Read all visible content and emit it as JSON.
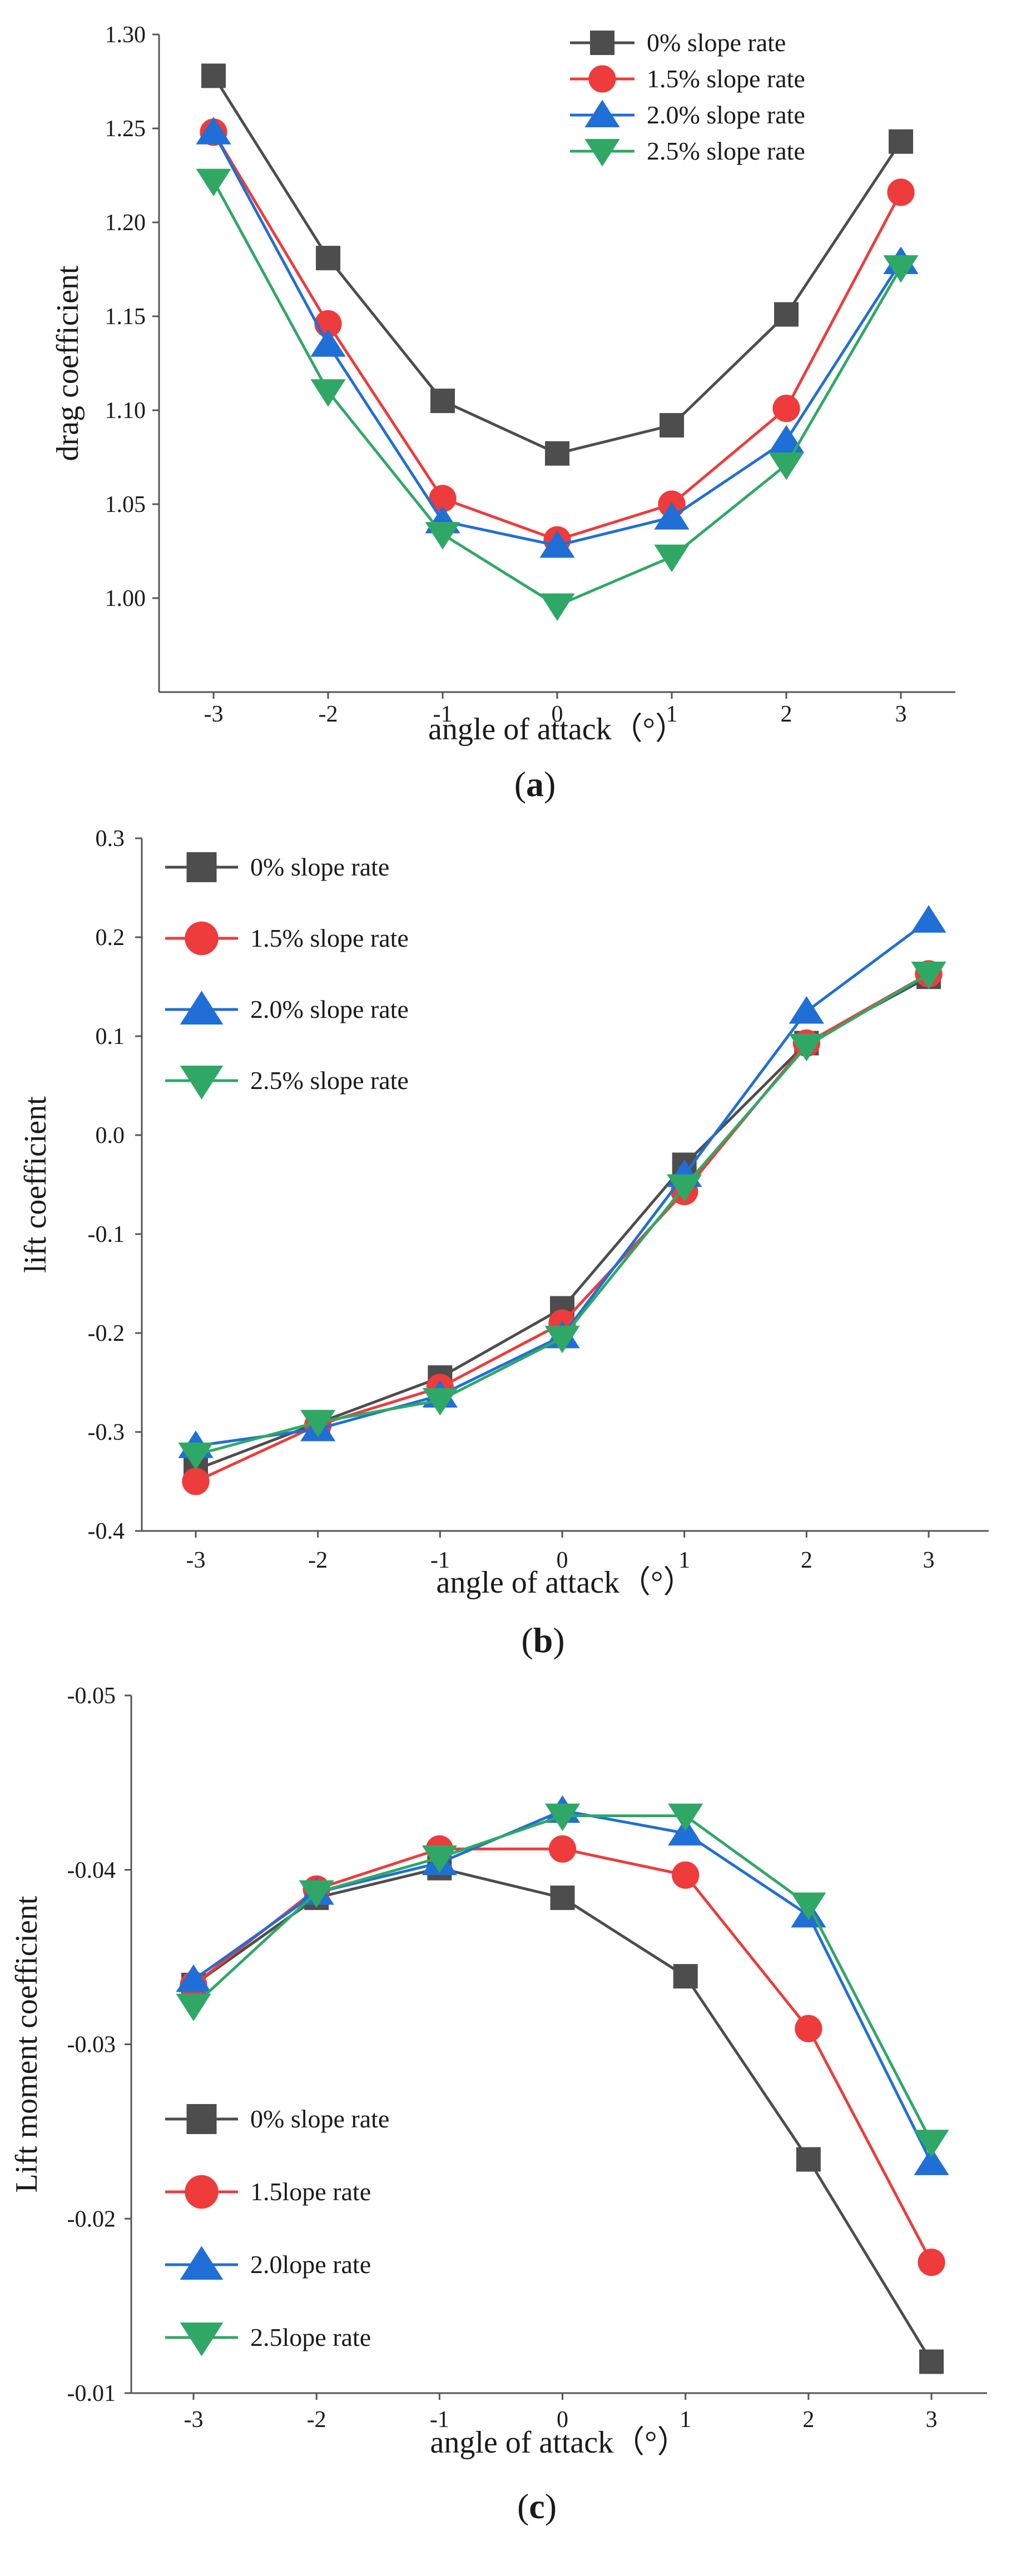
{
  "chart_data": [
    {
      "type": "line",
      "panel_label": "a",
      "xlabel": "angle of attack（°）",
      "ylabel": "drag coefficient",
      "x": [
        -3,
        -2,
        -1,
        0,
        1,
        2,
        3
      ],
      "x_tick_labels": [
        "-3",
        "-2",
        "-1",
        "0",
        "1",
        "2",
        "3"
      ],
      "ylim": [
        0.95,
        1.3
      ],
      "y_ticks": [
        1.0,
        1.05,
        1.1,
        1.15,
        1.2,
        1.25,
        1.3
      ],
      "y_tick_labels": [
        "1.00",
        "1.05",
        "1.10",
        "1.15",
        "1.20",
        "1.25",
        "1.30"
      ],
      "legend_position": "top-center",
      "series": [
        {
          "name": "0% slope rate",
          "marker": "square",
          "color": "#4d4d4d",
          "values": [
            1.278,
            1.181,
            1.105,
            1.077,
            1.092,
            1.151,
            1.243
          ]
        },
        {
          "name": "1.5% slope rate",
          "marker": "circle",
          "color": "#ee3b3b",
          "values": [
            1.248,
            1.146,
            1.053,
            1.031,
            1.05,
            1.101,
            1.216
          ]
        },
        {
          "name": "2.0% slope rate",
          "marker": "triangle-up",
          "color": "#1f6fd6",
          "values": [
            1.248,
            1.135,
            1.041,
            1.028,
            1.043,
            1.084,
            1.179
          ]
        },
        {
          "name": "2.5% slope rate",
          "marker": "triangle-down",
          "color": "#2fa866",
          "values": [
            1.222,
            1.11,
            1.034,
            0.996,
            1.022,
            1.071,
            1.176
          ]
        }
      ]
    },
    {
      "type": "line",
      "panel_label": "b",
      "xlabel": "angle of attack（°）",
      "ylabel": "lift coefficient",
      "x": [
        -3,
        -2,
        -1,
        0,
        1,
        2,
        3
      ],
      "x_tick_labels": [
        "-3",
        "-2",
        "-1",
        "0",
        "1",
        "2",
        "3"
      ],
      "ylim": [
        -0.4,
        0.3
      ],
      "y_ticks": [
        -0.4,
        -0.3,
        -0.2,
        -0.1,
        0.0,
        0.1,
        0.2,
        0.3
      ],
      "y_tick_labels": [
        "-0.4",
        "-0.3",
        "-0.2",
        "-0.1",
        "0.0",
        "0.1",
        "0.2",
        "0.3"
      ],
      "legend_position": "top-left",
      "series": [
        {
          "name": "0% slope rate",
          "marker": "square",
          "color": "#4d4d4d",
          "values": [
            -0.338,
            -0.291,
            -0.245,
            -0.175,
            -0.03,
            0.093,
            0.16
          ]
        },
        {
          "name": "1.5% slope rate",
          "marker": "circle",
          "color": "#ee3b3b",
          "values": [
            -0.35,
            -0.293,
            -0.255,
            -0.19,
            -0.057,
            0.093,
            0.163
          ]
        },
        {
          "name": "2.0% slope rate",
          "marker": "triangle-up",
          "color": "#1f6fd6",
          "values": [
            -0.314,
            -0.297,
            -0.263,
            -0.203,
            -0.04,
            0.125,
            0.217
          ]
        },
        {
          "name": "2.5% slope rate",
          "marker": "triangle-down",
          "color": "#2fa866",
          "values": [
            -0.323,
            -0.29,
            -0.268,
            -0.205,
            -0.052,
            0.09,
            0.163
          ]
        }
      ]
    },
    {
      "type": "line",
      "panel_label": "c",
      "xlabel": "angle of attack（°）",
      "ylabel": "Lift moment coefficient",
      "x": [
        -3,
        -2,
        -1,
        0,
        1,
        2,
        3
      ],
      "x_tick_labels": [
        "-3",
        "-2",
        "-1",
        "0",
        "1",
        "2",
        "3"
      ],
      "ylim": [
        -0.01,
        -0.05
      ],
      "y_ticks": [
        -0.01,
        -0.02,
        -0.03,
        -0.04,
        -0.05
      ],
      "y_tick_labels": [
        "-0.01",
        "-0.02",
        "-0.03",
        "-0.04",
        "-0.05"
      ],
      "legend_position": "bottom-left",
      "series": [
        {
          "name": "0%  slope rate",
          "marker": "square",
          "color": "#4d4d4d",
          "values": [
            -0.0334,
            -0.0384,
            -0.0401,
            -0.0384,
            -0.0339,
            -0.0234,
            -0.0118
          ]
        },
        {
          "name": "1.5lope rate",
          "marker": "circle",
          "color": "#ee3b3b",
          "values": [
            -0.0334,
            -0.0389,
            -0.0412,
            -0.0412,
            -0.0397,
            -0.0309,
            -0.0175
          ]
        },
        {
          "name": "2.0lope rate",
          "marker": "triangle-up",
          "color": "#1f6fd6",
          "values": [
            -0.0337,
            -0.0387,
            -0.0404,
            -0.0434,
            -0.0421,
            -0.0374,
            -0.0232
          ]
        },
        {
          "name": "2.5lope rate",
          "marker": "triangle-down",
          "color": "#2fa866",
          "values": [
            -0.0322,
            -0.0387,
            -0.0407,
            -0.0431,
            -0.0431,
            -0.038,
            -0.0244
          ]
        }
      ]
    }
  ]
}
